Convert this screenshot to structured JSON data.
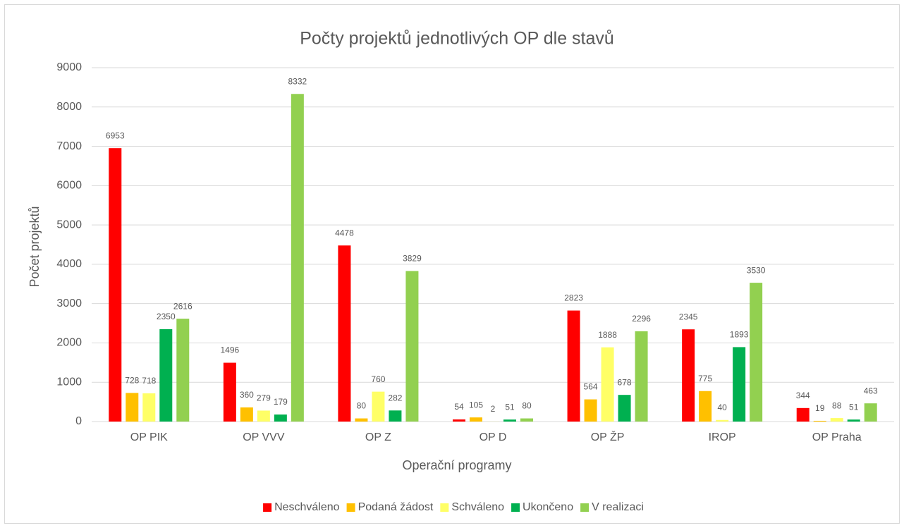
{
  "chart_data": {
    "type": "bar",
    "title": "Počty projektů jednotlivých OP dle stavů",
    "x_label": "Operační programy",
    "y_label": "Počet projektů",
    "categories": [
      "OP PIK",
      "OP VVV",
      "OP Z",
      "OP D",
      "OP ŽP",
      "IROP",
      "OP Praha"
    ],
    "series": [
      {
        "name": "Neschváleno",
        "color": "#ff0000",
        "values": [
          6953,
          1496,
          4478,
          54,
          2823,
          2345,
          344
        ]
      },
      {
        "name": "Podaná žádost",
        "color": "#ffc000",
        "values": [
          728,
          360,
          80,
          105,
          564,
          775,
          19
        ]
      },
      {
        "name": "Schváleno",
        "color": "#ffff66",
        "values": [
          718,
          279,
          760,
          2,
          1888,
          40,
          88
        ]
      },
      {
        "name": "Ukončeno",
        "color": "#00b050",
        "values": [
          2350,
          179,
          282,
          51,
          678,
          1893,
          51
        ]
      },
      {
        "name": "V realizaci",
        "color": "#92d050",
        "values": [
          2616,
          8332,
          3829,
          80,
          2296,
          3530,
          463
        ]
      }
    ],
    "ylim": [
      0,
      9000
    ],
    "yticks": [
      0,
      1000,
      2000,
      3000,
      4000,
      5000,
      6000,
      7000,
      8000,
      9000
    ],
    "grid": true,
    "legend": "bottom"
  }
}
